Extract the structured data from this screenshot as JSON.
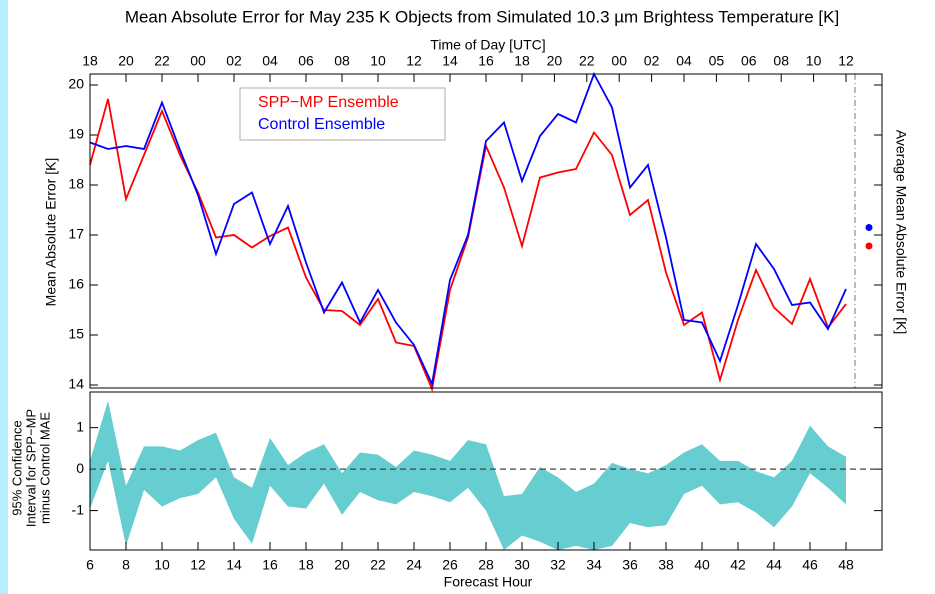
{
  "chart_data": [
    {
      "type": "line",
      "title": "Mean Absolute Error for May 235 K Objects from Simulated 10.3 µm Brightess Temperature [K]",
      "top_xlabel": "Time of Day [UTC]",
      "ylabel": "Mean Absolute Error [K]",
      "y2label": "Average Mean Absolute Error [K]",
      "x": [
        6,
        7,
        8,
        9,
        10,
        11,
        12,
        13,
        14,
        15,
        16,
        17,
        18,
        19,
        20,
        21,
        22,
        23,
        24,
        25,
        26,
        27,
        28,
        29,
        30,
        31,
        32,
        33,
        34,
        35,
        36,
        37,
        38,
        39,
        40,
        41,
        42,
        43,
        44,
        45,
        46,
        47,
        48
      ],
      "xlim": [
        6,
        50
      ],
      "ylim": [
        13.94,
        20.22
      ],
      "yticks": [
        14,
        15,
        16,
        17,
        18,
        19,
        20
      ],
      "top_xticks": [
        {
          "value": 6,
          "label": "18"
        },
        {
          "value": 8,
          "label": "20"
        },
        {
          "value": 10,
          "label": "22"
        },
        {
          "value": 12,
          "label": "00"
        },
        {
          "value": 14,
          "label": "02"
        },
        {
          "value": 16,
          "label": "04"
        },
        {
          "value": 18,
          "label": "06"
        },
        {
          "value": 20,
          "label": "08"
        },
        {
          "value": 22,
          "label": "10"
        },
        {
          "value": 24,
          "label": "12"
        },
        {
          "value": 26,
          "label": "14"
        },
        {
          "value": 28,
          "label": "16"
        },
        {
          "value": 30,
          "label": "18"
        },
        {
          "value": 31.8,
          "label": "20"
        },
        {
          "value": 33.6,
          "label": "22"
        },
        {
          "value": 35.4,
          "label": "00"
        },
        {
          "value": 37.2,
          "label": "02"
        },
        {
          "value": 39,
          "label": "04"
        },
        {
          "value": 40.8,
          "label": "05"
        },
        {
          "value": 42.6,
          "label": "06"
        },
        {
          "value": 44.4,
          "label": "08"
        },
        {
          "value": 46.2,
          "label": "10"
        },
        {
          "value": 48,
          "label": "12"
        }
      ],
      "series": [
        {
          "name": "SPP−MP Ensemble",
          "color": "#ff0000",
          "average": 16.78,
          "values": [
            18.4,
            19.72,
            17.72,
            18.6,
            19.48,
            18.6,
            17.85,
            16.95,
            17.0,
            16.75,
            16.98,
            17.15,
            16.15,
            15.5,
            15.48,
            15.2,
            15.72,
            14.85,
            14.78,
            13.92,
            15.9,
            16.95,
            18.78,
            17.95,
            16.78,
            18.15,
            18.25,
            18.32,
            19.05,
            18.6,
            17.4,
            17.7,
            16.25,
            15.2,
            15.45,
            14.1,
            15.3,
            16.3,
            15.55,
            15.22,
            16.12,
            15.15,
            15.62
          ]
        },
        {
          "name": "Control Ensemble",
          "color": "#0000ff",
          "average": 17.15,
          "values": [
            18.85,
            18.72,
            18.78,
            18.72,
            19.65,
            18.7,
            17.8,
            16.62,
            17.62,
            17.85,
            16.82,
            17.58,
            16.45,
            15.45,
            16.05,
            15.25,
            15.9,
            15.25,
            14.8,
            14.02,
            16.1,
            17.0,
            18.88,
            19.25,
            18.08,
            18.98,
            19.42,
            19.25,
            20.22,
            19.55,
            17.95,
            18.4,
            16.95,
            15.3,
            15.25,
            14.48,
            15.6,
            16.82,
            16.32,
            15.6,
            15.65,
            15.12,
            15.92
          ]
        }
      ]
    },
    {
      "type": "band",
      "ylabel": [
        "95% Confidence",
        "Interval for SPP−MP",
        "minus Control MAE"
      ],
      "xlabel": "Forecast Hour",
      "color": "#66cdd0",
      "hline": 0,
      "x": [
        6,
        7,
        8,
        9,
        10,
        11,
        12,
        13,
        14,
        15,
        16,
        17,
        18,
        19,
        20,
        21,
        22,
        23,
        24,
        25,
        26,
        27,
        28,
        29,
        30,
        31,
        32,
        33,
        34,
        35,
        36,
        37,
        38,
        39,
        40,
        41,
        42,
        43,
        44,
        45,
        46,
        47,
        48
      ],
      "xlim": [
        6,
        50
      ],
      "ylim": [
        -1.95,
        1.86
      ],
      "yticks": [
        -1,
        0,
        1
      ],
      "xticks": [
        6,
        8,
        10,
        12,
        14,
        16,
        18,
        20,
        22,
        24,
        26,
        28,
        30,
        32,
        34,
        36,
        38,
        40,
        42,
        44,
        46,
        48
      ],
      "upper": [
        0.2,
        1.65,
        -0.4,
        0.55,
        0.55,
        0.45,
        0.7,
        0.88,
        -0.2,
        -0.45,
        0.75,
        0.1,
        0.4,
        0.6,
        -0.1,
        0.4,
        0.35,
        0.05,
        0.45,
        0.35,
        0.2,
        0.7,
        0.6,
        -0.65,
        -0.6,
        0.05,
        -0.2,
        -0.55,
        -0.35,
        0.15,
        0.0,
        -0.1,
        0.1,
        0.4,
        0.6,
        0.2,
        0.2,
        -0.05,
        -0.2,
        0.2,
        1.05,
        0.55,
        0.3
      ],
      "lower": [
        -0.95,
        0.2,
        -1.85,
        -0.5,
        -0.9,
        -0.7,
        -0.6,
        -0.2,
        -1.2,
        -1.8,
        -0.4,
        -0.9,
        -0.95,
        -0.35,
        -1.1,
        -0.55,
        -0.75,
        -0.85,
        -0.55,
        -0.65,
        -0.8,
        -0.45,
        -1.0,
        -1.95,
        -1.6,
        -1.75,
        -1.95,
        -1.85,
        -1.95,
        -1.85,
        -1.3,
        -1.4,
        -1.35,
        -0.6,
        -0.4,
        -0.85,
        -0.8,
        -1.05,
        -1.4,
        -0.9,
        -0.1,
        -0.45,
        -0.85
      ]
    }
  ]
}
